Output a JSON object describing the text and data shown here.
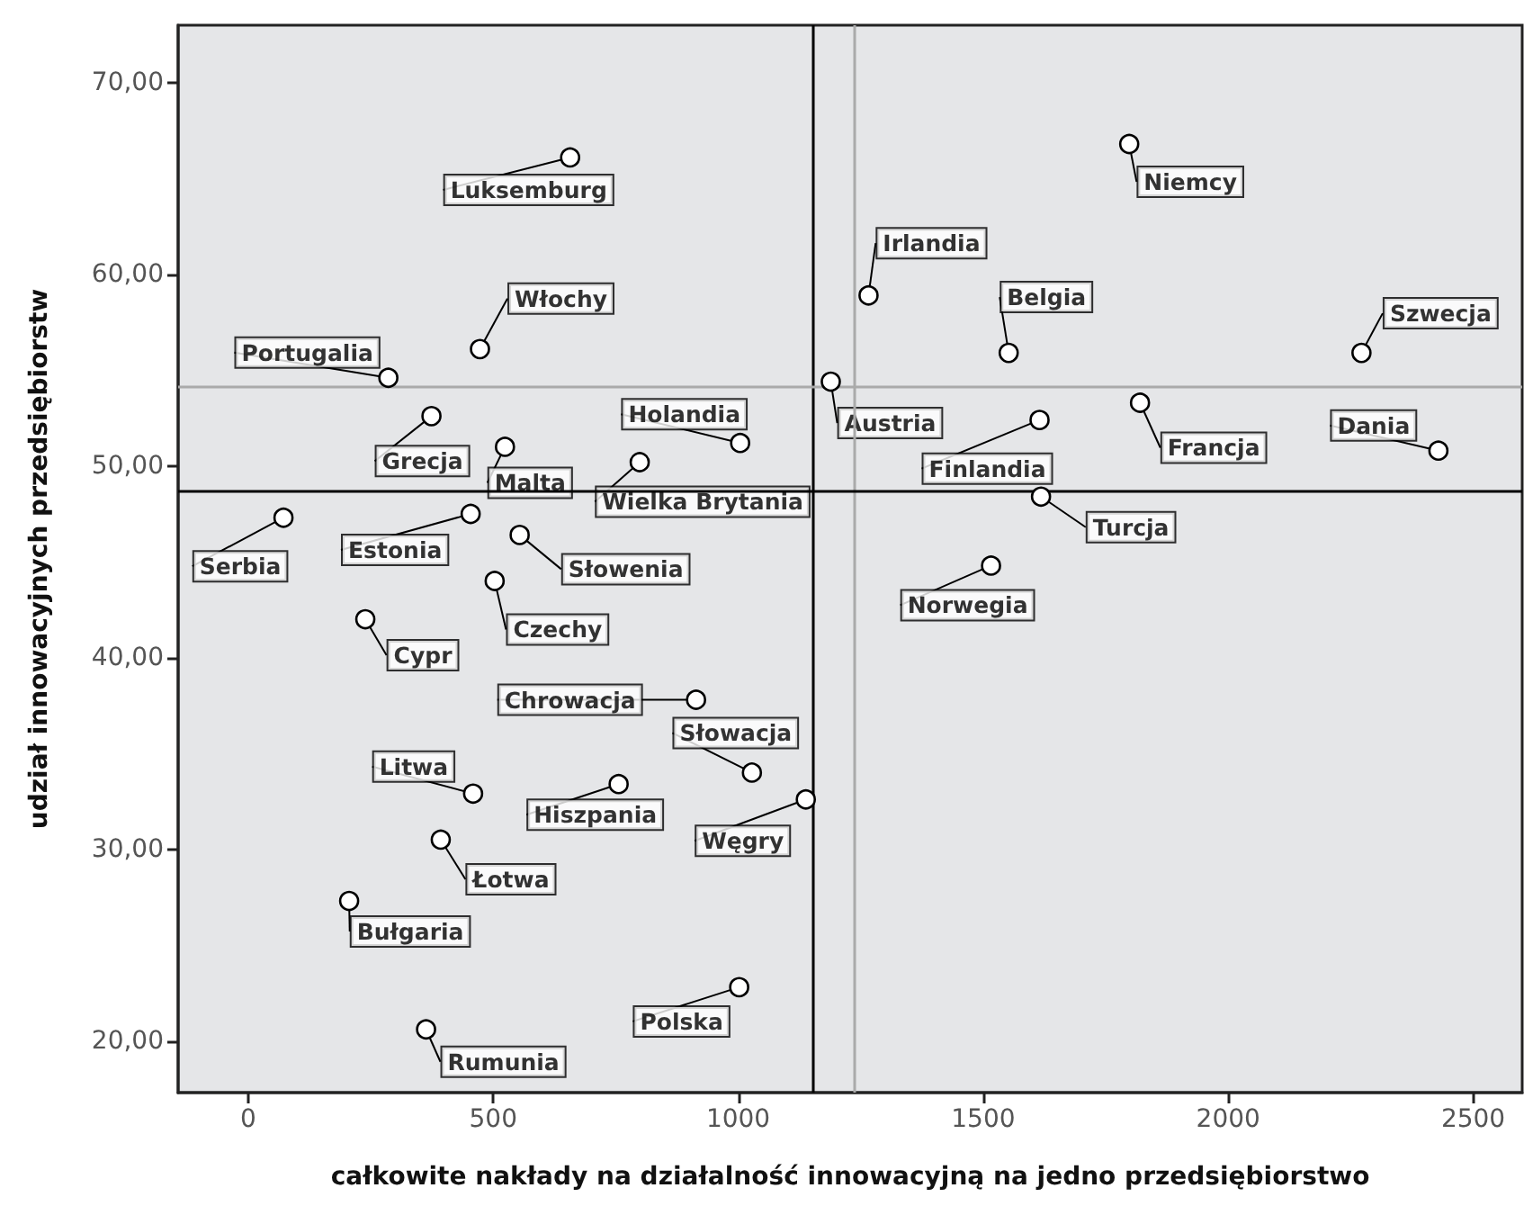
{
  "chart_data": {
    "type": "scatter",
    "xlabel": "całkowite nakłady na działalność innowacyjną na jedno przedsiębiorstwo",
    "ylabel": "udział innowacyjnych przedsiębiorstw",
    "x": [
      657,
      473,
      286,
      374,
      524,
      1004,
      799,
      72,
      454,
      554,
      503,
      239,
      914,
      1028,
      459,
      756,
      1138,
      393,
      206,
      1002,
      363,
      1798,
      1266,
      1552,
      2272,
      1189,
      1615,
      1820,
      2429,
      1618,
      1516
    ],
    "series": [
      {
        "color": "#000000",
        "values": [
          66.1,
          56.1,
          54.6,
          52.6,
          51.0,
          51.2,
          50.2,
          47.3,
          47.5,
          46.4,
          44.0,
          42.0,
          37.8,
          34.0,
          32.9,
          33.4,
          32.6,
          30.5,
          27.3,
          22.8,
          20.6,
          66.8,
          58.9,
          55.9,
          55.9,
          54.4,
          52.4,
          53.3,
          50.8,
          48.4,
          44.8
        ]
      }
    ],
    "annotations": [
      {
        "text": "Luksemburg",
        "x": 657,
        "y": 66.1
      },
      {
        "text": "Włochy",
        "x": 473,
        "y": 56.1
      },
      {
        "text": "Portugalia",
        "x": 286,
        "y": 54.6
      },
      {
        "text": "Grecja",
        "x": 374,
        "y": 52.6
      },
      {
        "text": "Malta",
        "x": 524,
        "y": 51.0
      },
      {
        "text": "Holandia",
        "x": 1004,
        "y": 51.2
      },
      {
        "text": "Wielka Brytania",
        "x": 799,
        "y": 50.2
      },
      {
        "text": "Serbia",
        "x": 72,
        "y": 47.3
      },
      {
        "text": "Estonia",
        "x": 454,
        "y": 47.5
      },
      {
        "text": "Słowenia",
        "x": 554,
        "y": 46.4
      },
      {
        "text": "Czechy",
        "x": 503,
        "y": 44.0
      },
      {
        "text": "Cypr",
        "x": 239,
        "y": 42.0
      },
      {
        "text": "Chrowacja",
        "x": 914,
        "y": 37.8
      },
      {
        "text": "Słowacja",
        "x": 1028,
        "y": 34.0
      },
      {
        "text": "Litwa",
        "x": 459,
        "y": 32.9
      },
      {
        "text": "Hiszpania",
        "x": 756,
        "y": 33.4
      },
      {
        "text": "Węgry",
        "x": 1138,
        "y": 32.6
      },
      {
        "text": "Łotwa",
        "x": 393,
        "y": 30.5
      },
      {
        "text": "Bułgaria",
        "x": 206,
        "y": 27.3
      },
      {
        "text": "Polska",
        "x": 1002,
        "y": 22.8
      },
      {
        "text": "Rumunia",
        "x": 363,
        "y": 20.6
      },
      {
        "text": "Niemcy",
        "x": 1798,
        "y": 66.8
      },
      {
        "text": "Irlandia",
        "x": 1266,
        "y": 58.9
      },
      {
        "text": "Belgia",
        "x": 1552,
        "y": 55.9
      },
      {
        "text": "Szwecja",
        "x": 2272,
        "y": 55.9
      },
      {
        "text": "Austria",
        "x": 1189,
        "y": 54.4
      },
      {
        "text": "Finlandia",
        "x": 1615,
        "y": 52.4
      },
      {
        "text": "Francja",
        "x": 1820,
        "y": 53.3
      },
      {
        "text": "Dania",
        "x": 2429,
        "y": 50.8
      },
      {
        "text": "Turcja",
        "x": 1618,
        "y": 48.4
      },
      {
        "text": "Norwegia",
        "x": 1516,
        "y": 44.8
      }
    ],
    "ref_lines": [
      {
        "axis": "x",
        "value": 1152,
        "color": "#000000"
      },
      {
        "axis": "x",
        "value": 1237,
        "color": "#aaaaaa"
      },
      {
        "axis": "y",
        "value": 48.7,
        "color": "#000000"
      },
      {
        "axis": "y",
        "value": 54.1,
        "color": "#aaaaaa"
      }
    ],
    "xlim": [
      -143,
      2600
    ],
    "xticks": [
      0,
      500,
      1000,
      1500,
      2000,
      2500
    ],
    "ylim": [
      17.3,
      73
    ],
    "yticks": [
      {
        "value": 20,
        "label": "20,00"
      },
      {
        "value": 30,
        "label": "30,00"
      },
      {
        "value": 40,
        "label": "40,00"
      },
      {
        "value": 50,
        "label": "50,00"
      },
      {
        "value": 60,
        "label": "60,00"
      },
      {
        "value": 70,
        "label": "70,00"
      }
    ],
    "grid": false,
    "marker": "circle"
  }
}
